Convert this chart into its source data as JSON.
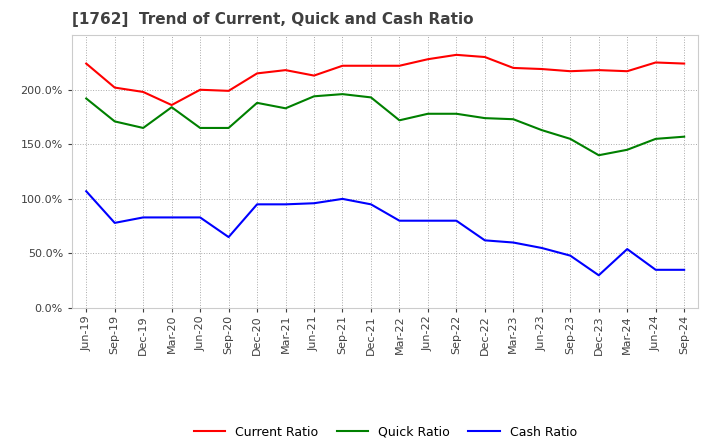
{
  "title": "[1762]  Trend of Current, Quick and Cash Ratio",
  "title_color": "#404040",
  "background_color": "#ffffff",
  "plot_background": "#ffffff",
  "grid_color": "#aaaaaa",
  "x_labels": [
    "Jun-19",
    "Sep-19",
    "Dec-19",
    "Mar-20",
    "Jun-20",
    "Sep-20",
    "Dec-20",
    "Mar-21",
    "Jun-21",
    "Sep-21",
    "Dec-21",
    "Mar-22",
    "Jun-22",
    "Sep-22",
    "Dec-22",
    "Mar-23",
    "Jun-23",
    "Sep-23",
    "Dec-23",
    "Mar-24",
    "Jun-24",
    "Sep-24"
  ],
  "current_ratio": [
    224,
    202,
    198,
    186,
    200,
    199,
    215,
    218,
    213,
    222,
    222,
    222,
    228,
    232,
    230,
    220,
    219,
    217,
    218,
    217,
    225,
    224
  ],
  "quick_ratio": [
    192,
    171,
    165,
    184,
    165,
    165,
    188,
    183,
    194,
    196,
    193,
    172,
    178,
    178,
    174,
    173,
    163,
    155,
    140,
    145,
    155,
    157
  ],
  "cash_ratio": [
    107,
    78,
    83,
    83,
    83,
    65,
    95,
    95,
    96,
    100,
    95,
    80,
    80,
    80,
    62,
    60,
    55,
    48,
    30,
    54,
    35,
    35
  ],
  "current_color": "#ff0000",
  "quick_color": "#008000",
  "cash_color": "#0000ff",
  "line_width": 1.5,
  "ylim": [
    0,
    250
  ],
  "yticks": [
    0,
    50,
    100,
    150,
    200
  ],
  "legend_labels": [
    "Current Ratio",
    "Quick Ratio",
    "Cash Ratio"
  ]
}
